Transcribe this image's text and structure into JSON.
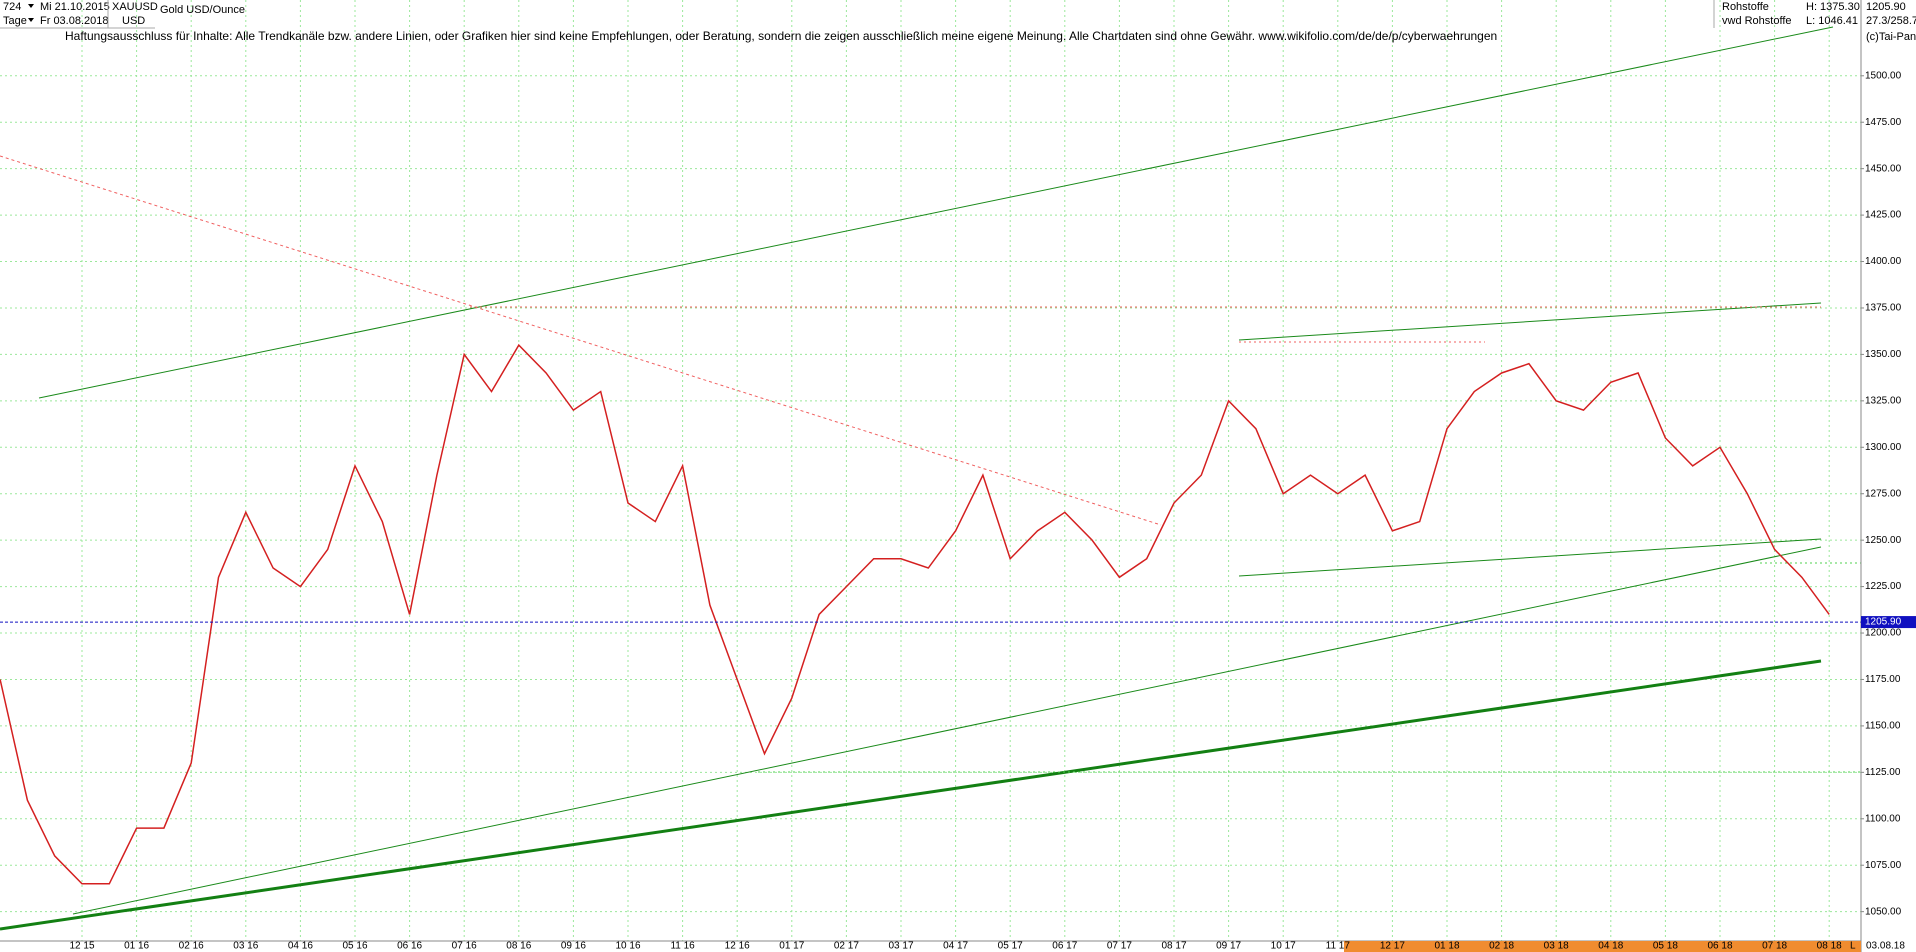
{
  "header": {
    "id": "724",
    "start": "Mi 21.10.2015",
    "period": "Tage",
    "end": "Fr 03.08.2018",
    "currency": "USD",
    "disclaimer": "Haftungsausschluss für Inhalte: Alle Trendkanäle bzw. andere Linien, oder Grafiken hier sind keine Empfehlungen, oder Beratung, sondern die zeigen ausschließlich meine eigene Meinung. Alle Chartdaten sind ohne Gewähr.  www.wikifolio.com/de/de/p/cyberwaehrungen",
    "market": "Rohstoffe",
    "source": "vwd Rohstoffe",
    "high": "H: 1375.30",
    "low": "L: 1046.41",
    "ratio": "27.3/258.7",
    "copyright": "(c)Tai-Pan",
    "date_end": "03.08.18",
    "scale_mode": "L"
  },
  "chart_data": {
    "type": "line",
    "title": "Gold USD/Ounce",
    "categories": [
      null,
      null,
      null,
      "12 15",
      null,
      "01 16",
      null,
      "02 16",
      null,
      "03 16",
      null,
      "04 16",
      null,
      "05 16",
      null,
      "06 16",
      null,
      "07 16",
      null,
      "08 16",
      null,
      "09 16",
      null,
      "10 16",
      null,
      "11 16",
      null,
      "12 16",
      null,
      "01 17",
      null,
      "02 17",
      null,
      "03 17",
      null,
      "04 17",
      null,
      "05 17",
      null,
      "06 17",
      null,
      "07 17",
      null,
      "08 17",
      null,
      "09 17",
      null,
      "10 17",
      null,
      "11 17",
      null,
      "12 17",
      null,
      "01 18",
      null,
      "02 18",
      null,
      "03 18",
      null,
      "04 18",
      null,
      "05 18",
      null,
      "06 18",
      null,
      "07 18",
      null,
      "08 18"
    ],
    "series": [
      {
        "name": "XAUUSD",
        "color": "#d42020",
        "values": [
          1175,
          1110,
          1080,
          1065,
          1065,
          1095,
          1095,
          1130,
          1230,
          1265,
          1235,
          1225,
          1245,
          1290,
          1260,
          1210,
          1285,
          1350,
          1330,
          1355,
          1340,
          1320,
          1330,
          1270,
          1260,
          1290,
          1215,
          1175,
          1135,
          1165,
          1210,
          1225,
          1240,
          1240,
          1235,
          1255,
          1285,
          1240,
          1255,
          1265,
          1250,
          1230,
          1240,
          1270,
          1285,
          1325,
          1310,
          1275,
          1285,
          1275,
          1285,
          1255,
          1260,
          1310,
          1330,
          1340,
          1345,
          1325,
          1320,
          1335,
          1340,
          1305,
          1290,
          1300,
          1275,
          1245,
          1230,
          1210
        ]
      }
    ],
    "last_price": {
      "value": 1205.9,
      "label": "1205.90"
    },
    "ylim": [
      1034.2,
      1540.8
    ],
    "yticks": [
      {
        "value": 1050,
        "label": "1050.00"
      },
      {
        "value": 1075,
        "label": "1075.00"
      },
      {
        "value": 1100,
        "label": "1100.00"
      },
      {
        "value": 1125,
        "label": "1125.00"
      },
      {
        "value": 1150,
        "label": "1150.00"
      },
      {
        "value": 1175,
        "label": "1175.00"
      },
      {
        "value": 1200,
        "label": "1200.00"
      },
      {
        "value": 1225,
        "label": "1225.00"
      },
      {
        "value": 1250,
        "label": "1250.00"
      },
      {
        "value": 1275,
        "label": "1275.00"
      },
      {
        "value": 1300,
        "label": "1300.00"
      },
      {
        "value": 1325,
        "label": "1325.00"
      },
      {
        "value": 1350,
        "label": "1350.00"
      },
      {
        "value": 1375,
        "label": "1375.00"
      },
      {
        "value": 1400,
        "label": "1400.00"
      },
      {
        "value": 1425,
        "label": "1425.00"
      },
      {
        "value": 1450,
        "label": "1450.00"
      },
      {
        "value": 1475,
        "label": "1475.00"
      },
      {
        "value": 1500,
        "label": "1500.00"
      }
    ],
    "grid": true
  }
}
